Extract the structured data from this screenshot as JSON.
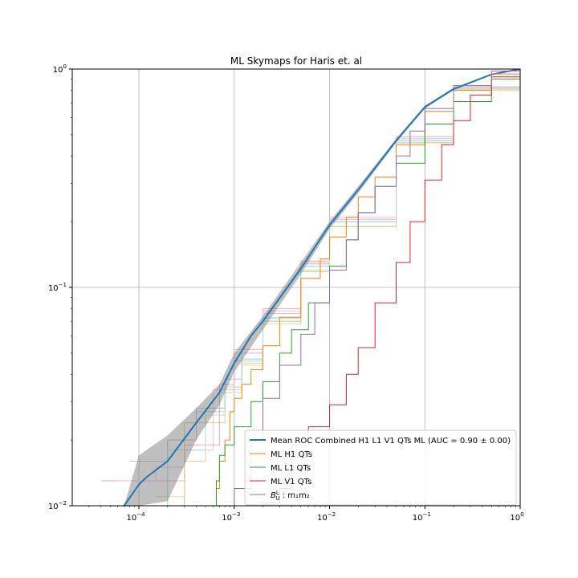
{
  "chart_data": {
    "type": "line",
    "title": "ML Skymaps for Haris et. al",
    "xlabel": "",
    "ylabel": "",
    "xscale": "log",
    "yscale": "log",
    "xlim": [
      2e-05,
      1
    ],
    "ylim": [
      0.01,
      1
    ],
    "grid": true,
    "legend_position": "lower-right",
    "x_ticks": [
      {
        "value": 0.0001,
        "base": "10",
        "exp": "−4"
      },
      {
        "value": 0.001,
        "base": "10",
        "exp": "−3"
      },
      {
        "value": 0.01,
        "base": "10",
        "exp": "−2"
      },
      {
        "value": 0.1,
        "base": "10",
        "exp": "−1"
      },
      {
        "value": 1,
        "base": "10",
        "exp": "0"
      }
    ],
    "y_ticks": [
      {
        "value": 0.01,
        "base": "10",
        "exp": "−2"
      },
      {
        "value": 0.1,
        "base": "10",
        "exp": "−1"
      },
      {
        "value": 1,
        "base": "10",
        "exp": "0"
      }
    ],
    "band": {
      "color": "#808080",
      "x": [
        7e-05,
        0.0001,
        0.0002,
        0.0004,
        0.0007,
        0.001,
        0.002,
        0.005,
        0.01,
        0.02,
        0.05,
        0.1,
        0.2,
        0.5,
        1
      ],
      "upper": [
        0.01,
        0.017,
        0.021,
        0.028,
        0.036,
        0.05,
        0.074,
        0.13,
        0.2,
        0.29,
        0.48,
        0.68,
        0.82,
        0.95,
        1.0
      ],
      "lower": [
        0.01,
        0.01,
        0.0105,
        0.02,
        0.029,
        0.041,
        0.064,
        0.115,
        0.185,
        0.27,
        0.46,
        0.66,
        0.8,
        0.94,
        1.0
      ]
    },
    "series": [
      {
        "name": "Mean ROC Combined H1 L1 V1 QTs ML (AUC = 0.90 ± 0.00)",
        "color": "#1f77b4",
        "style": "line",
        "width": 2,
        "x": [
          7e-05,
          0.0001,
          0.00012,
          0.0002,
          0.0004,
          0.0007,
          0.001,
          0.0015,
          0.002,
          0.005,
          0.01,
          0.02,
          0.05,
          0.1,
          0.2,
          0.5,
          1
        ],
        "y": [
          0.01,
          0.0125,
          0.0135,
          0.016,
          0.024,
          0.033,
          0.045,
          0.06,
          0.07,
          0.122,
          0.193,
          0.28,
          0.47,
          0.67,
          0.81,
          0.945,
          1.0
        ]
      },
      {
        "name": "ML H1 QTs",
        "color": "#ff7f0e",
        "style": "step",
        "x": [
          0.0006,
          0.00065,
          0.0007,
          0.0008,
          0.0009,
          0.001,
          0.0012,
          0.0015,
          0.002,
          0.003,
          0.005,
          0.008,
          0.01,
          0.015,
          0.02,
          0.03,
          0.05,
          0.1,
          0.2,
          0.5,
          1
        ],
        "y": [
          0.01,
          0.012,
          0.016,
          0.02,
          0.027,
          0.031,
          0.036,
          0.042,
          0.054,
          0.073,
          0.11,
          0.135,
          0.17,
          0.21,
          0.26,
          0.32,
          0.45,
          0.64,
          0.8,
          0.95,
          1.0
        ]
      },
      {
        "name": "ML L1 QTs",
        "color": "#2ca02c",
        "style": "step",
        "x": [
          0.0006,
          0.00065,
          0.0007,
          0.0008,
          0.001,
          0.0015,
          0.002,
          0.003,
          0.004,
          0.006,
          0.01,
          0.015,
          0.02,
          0.03,
          0.05,
          0.1,
          0.2,
          0.5,
          1
        ],
        "y": [
          0.01,
          0.013,
          0.017,
          0.019,
          0.023,
          0.03,
          0.037,
          0.05,
          0.064,
          0.085,
          0.125,
          0.165,
          0.22,
          0.29,
          0.37,
          0.56,
          0.71,
          0.9,
          1.0
        ]
      },
      {
        "name": "ML V1 QTs",
        "color": "#d62728",
        "style": "step",
        "x": [
          0.0006,
          0.002,
          0.003,
          0.004,
          0.006,
          0.01,
          0.015,
          0.02,
          0.03,
          0.05,
          0.07,
          0.1,
          0.15,
          0.2,
          0.3,
          0.5,
          1
        ],
        "y": [
          0.01,
          0.0103,
          0.012,
          0.019,
          0.023,
          0.029,
          0.04,
          0.053,
          0.085,
          0.13,
          0.2,
          0.31,
          0.45,
          0.58,
          0.76,
          0.92,
          1.0
        ]
      },
      {
        "name_prefix": "B",
        "name_sup": "L",
        "name_sub": "U",
        "name_suffix": " : m₁m₂",
        "color": "#9467bd",
        "style": "step",
        "x": [
          0.0008,
          0.001,
          0.0015,
          0.002,
          0.003,
          0.005,
          0.007,
          0.01,
          0.015,
          0.02,
          0.03,
          0.05,
          0.07,
          0.1,
          0.2,
          0.5,
          1
        ],
        "y": [
          0.01,
          0.012,
          0.02,
          0.031,
          0.044,
          0.061,
          0.085,
          0.12,
          0.165,
          0.22,
          0.29,
          0.4,
          0.52,
          0.66,
          0.84,
          0.98,
          1.0
        ]
      }
    ],
    "faint_series": [
      {
        "color": "#aec7e8",
        "x": [
          2.5e-05,
          0.0002,
          0.0004,
          0.0007,
          0.001,
          0.002,
          0.005,
          0.01,
          0.05,
          0.2,
          1
        ],
        "y": [
          0.01,
          0.02,
          0.027,
          0.033,
          0.046,
          0.072,
          0.125,
          0.2,
          0.48,
          0.82,
          1.0
        ]
      },
      {
        "color": "#ffbb78",
        "x": [
          0.00025,
          0.0003,
          0.0005,
          0.0008,
          0.0012,
          0.002,
          0.005,
          0.01,
          0.05,
          0.2,
          1
        ],
        "y": [
          0.01,
          0.016,
          0.024,
          0.034,
          0.045,
          0.07,
          0.12,
          0.19,
          0.46,
          0.8,
          1.0
        ]
      },
      {
        "color": "#98df8a",
        "x": [
          0.0002,
          0.0003,
          0.0005,
          0.0008,
          0.0012,
          0.002,
          0.005,
          0.01,
          0.05,
          0.2,
          1
        ],
        "y": [
          0.01,
          0.024,
          0.028,
          0.035,
          0.047,
          0.07,
          0.118,
          0.19,
          0.46,
          0.81,
          1.0
        ]
      },
      {
        "color": "#ff9896",
        "x": [
          4e-05,
          0.0001,
          0.0003,
          0.0007,
          0.001,
          0.002,
          0.005,
          0.01,
          0.05,
          0.2,
          1
        ],
        "y": [
          0.013,
          0.013,
          0.019,
          0.036,
          0.052,
          0.08,
          0.132,
          0.205,
          0.49,
          0.83,
          1.0
        ]
      },
      {
        "color": "#c5b0d5",
        "x": [
          8e-05,
          0.0002,
          0.0004,
          0.0008,
          0.0012,
          0.002,
          0.005,
          0.01,
          0.05,
          0.2,
          1
        ],
        "y": [
          0.016,
          0.02,
          0.028,
          0.038,
          0.05,
          0.076,
          0.128,
          0.2,
          0.47,
          0.81,
          1.0
        ]
      },
      {
        "color": "#f7b6d2",
        "x": [
          6e-05,
          0.00015,
          0.0003,
          0.0006,
          0.001,
          0.002,
          0.005,
          0.01,
          0.05,
          0.2,
          1
        ],
        "y": [
          0.013,
          0.015,
          0.018,
          0.034,
          0.05,
          0.078,
          0.13,
          0.21,
          0.49,
          0.83,
          1.0
        ]
      },
      {
        "color": "#dbdb8d",
        "x": [
          0.00015,
          0.0003,
          0.0005,
          0.0008,
          0.0012,
          0.002,
          0.005,
          0.01,
          0.05,
          0.2,
          1
        ],
        "y": [
          0.011,
          0.024,
          0.026,
          0.033,
          0.044,
          0.068,
          0.12,
          0.19,
          0.46,
          0.81,
          1.0
        ]
      },
      {
        "color": "#9edae5",
        "x": [
          3e-05,
          0.0002,
          0.0005,
          0.0008,
          0.0012,
          0.002,
          0.005,
          0.01,
          0.05,
          0.2,
          1
        ],
        "y": [
          0.01,
          0.018,
          0.027,
          0.035,
          0.047,
          0.073,
          0.125,
          0.2,
          0.47,
          0.82,
          1.0
        ]
      }
    ]
  }
}
